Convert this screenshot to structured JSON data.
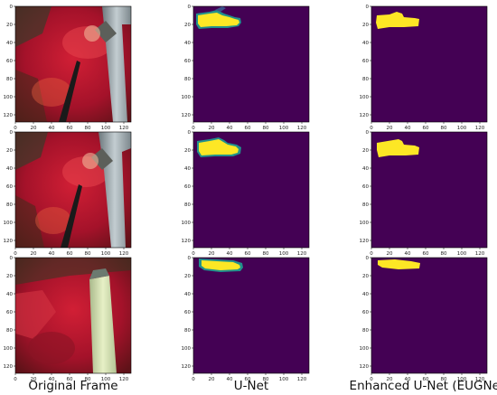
{
  "figure": {
    "column_titles": [
      "Original Frame",
      "U-Net",
      "Enhanced U-Net (EUGNet)"
    ],
    "axis_ticks": {
      "x": [
        "0",
        "20",
        "40",
        "60",
        "80",
        "100",
        "120"
      ],
      "y": [
        "0",
        "20",
        "40",
        "60",
        "80",
        "100",
        "120"
      ]
    },
    "rows": 3,
    "colors": {
      "mask_background": "#440154",
      "mask_foreground": "#fde725",
      "mask_edge": "#21918c",
      "tissue_red": "#b3142b",
      "tool_grey": "#8f9aa0",
      "tool_light": "#d7e6b4"
    }
  }
}
